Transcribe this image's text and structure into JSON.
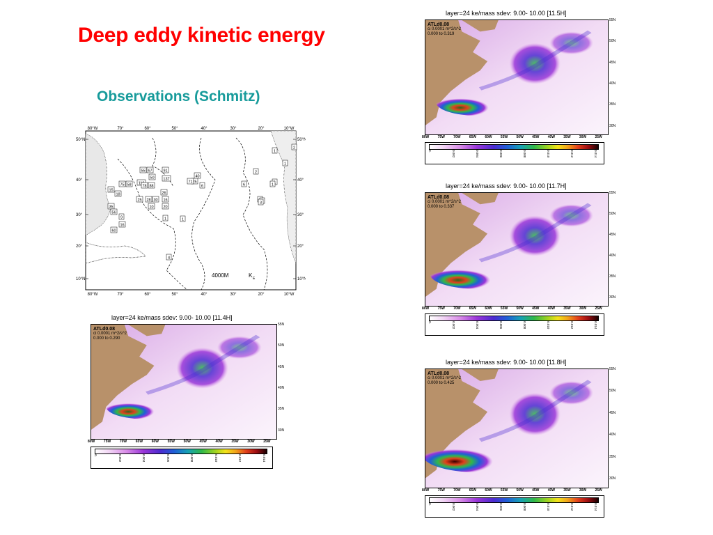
{
  "title": "Deep eddy kinetic energy",
  "subtitle": "Observations (Schmitz)",
  "observations_map": {
    "top_labels": [
      "80°W",
      "70°",
      "60°",
      "50°",
      "40°",
      "30°",
      "20°",
      "10°W"
    ],
    "bottom_labels": [
      "80°W",
      "70°",
      "60°",
      "50°",
      "40°",
      "30°",
      "20°",
      "10°W"
    ],
    "left_labels": [
      "50°N",
      "40°",
      "30°",
      "20°",
      "10°N"
    ],
    "right_labels": [
      "50°N",
      "40°",
      "30°",
      "20°",
      "10°N"
    ],
    "depth_label": "4000M",
    "ke_label": "K",
    "ke_sub": "E",
    "boxes": [
      "1",
      "2",
      "1",
      "6",
      "2",
      "1",
      "1",
      "3",
      "3",
      "1",
      "1",
      "4",
      "55",
      "67",
      "91",
      "58",
      "110",
      "137",
      "50",
      "75",
      "78",
      "88",
      "15",
      "28",
      "30",
      "26",
      "25",
      "16",
      "18",
      "35",
      "56",
      "20",
      "10",
      "9",
      "16",
      "60",
      "1",
      "40",
      "25",
      "71",
      "6"
    ]
  },
  "model_panels": [
    {
      "id": "11.5",
      "title": "layer=24  ke/mass  sdev:    9.00-  10.00 [11.5H]",
      "legend": [
        "ATLd0.08",
        "ci 0.0001  m^2/s^2",
        "0.000  to  0.319"
      ],
      "lat_labels": [
        "55N",
        "50N",
        "45N",
        "40N",
        "35N",
        "30N"
      ],
      "lon_labels": [
        "80W",
        "75W",
        "70W",
        "65W",
        "60W",
        "55W",
        "50W",
        "45W",
        "40W",
        "35W",
        "30W",
        "25W"
      ],
      "cbar_ticks": [
        "0.",
        "0.002",
        "0.004",
        "0.006",
        "0.008",
        "0.010",
        "0.012",
        "0.014"
      ]
    },
    {
      "id": "11.7",
      "title": "layer=24  ke/mass  sdev:    9.00-  10.00 [11.7H]",
      "legend": [
        "ATLd0.08",
        "ci 0.0001  m^2/s^2",
        "0.000  to  0.337"
      ],
      "lat_labels": [
        "55N",
        "50N",
        "45N",
        "40N",
        "35N",
        "30N"
      ],
      "lon_labels": [
        "80W",
        "75W",
        "70W",
        "65W",
        "60W",
        "55W",
        "50W",
        "45W",
        "40W",
        "35W",
        "30W",
        "25W"
      ],
      "cbar_ticks": [
        "0.",
        "0.002",
        "0.004",
        "0.006",
        "0.008",
        "0.010",
        "0.012",
        "0.014"
      ]
    },
    {
      "id": "11.4",
      "title": "layer=24  ke/mass  sdev:    9.00-  10.00 [11.4H]",
      "legend": [
        "ATLd0.08",
        "ci 0.0001  m^2/s^2",
        "0.000  to  0.290"
      ],
      "lat_labels": [
        "55N",
        "50N",
        "45N",
        "40N",
        "35N",
        "30N"
      ],
      "lon_labels": [
        "80W",
        "75W",
        "70W",
        "65W",
        "60W",
        "55W",
        "50W",
        "45W",
        "40W",
        "35W",
        "30W",
        "25W"
      ],
      "cbar_ticks": [
        "0.",
        "0.002",
        "0.004",
        "0.006",
        "0.008",
        "0.010",
        "0.012",
        "0.014"
      ]
    },
    {
      "id": "11.8",
      "title": "layer=24  ke/mass  sdev:    9.00-  10.00 [11.8H]",
      "legend": [
        "ATLd0.08",
        "ci 0.0001  m^2/s^2",
        "0.000  to  0.425"
      ],
      "lat_labels": [
        "55N",
        "50N",
        "45N",
        "40N",
        "35N",
        "30N"
      ],
      "lon_labels": [
        "80W",
        "75W",
        "70W",
        "65W",
        "60W",
        "55W",
        "50W",
        "45W",
        "40W",
        "35W",
        "30W",
        "25W"
      ],
      "cbar_ticks": [
        "0.",
        "0.002",
        "0.004",
        "0.006",
        "0.008",
        "0.010",
        "0.012",
        "0.014"
      ]
    }
  ],
  "colors": {
    "title": "#ff0000",
    "subtitle": "#179b9b",
    "land": "#b8916a",
    "ocean_low": "#f5ecf7"
  }
}
